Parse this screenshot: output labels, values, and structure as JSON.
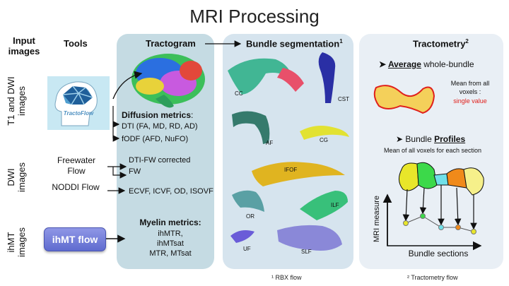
{
  "title": "MRI Processing",
  "headers": {
    "input_images": "Input images",
    "tools": "Tools",
    "tractogram": "Tractogram",
    "bundle_segmentation": "Bundle segmentation",
    "bundle_sup": "1",
    "tractometry": "Tractometry",
    "tractometry_sup": "2"
  },
  "rows": {
    "t1_dwi": "T1 and DWI images",
    "dwi": "DWI images",
    "ihmt": "ihMT images"
  },
  "tools": {
    "tractoflow_logo": "TractoFlow",
    "freewater": "Freewater Flow",
    "noddi": "NODDI Flow",
    "ihmt_button": "ihMT flow"
  },
  "tractogram": {
    "diffusion_title": "Diffusion metrics",
    "diffusion_colon": ":",
    "dti": "DTI (FA, MD, RD, AD)",
    "fodf": "fODF (AFD, NuFO)",
    "dtifw_1": "DTI-FW corrected",
    "dtifw_2": "FW",
    "noddi_metrics": "ECVF, ICVF, OD, ISOVF",
    "myelin_title": "Myelin metrics:",
    "myelin_1": "ihMTR,",
    "myelin_2": "ihMTsat",
    "myelin_3": "MTR, MTsat"
  },
  "bundles": [
    "CC",
    "CST",
    "AF",
    "CG",
    "IFOF",
    "ILF",
    "OR",
    "UF",
    "SLF"
  ],
  "tractometry": {
    "bullet": "➤",
    "average_word": "Average",
    "average_rest": "whole-bundle",
    "mean_all": "Mean from all voxels :",
    "single_value": "single value",
    "profiles_prefix": "Bundle",
    "profiles_word": "Profiles",
    "profiles_desc": "Mean of all voxels for each section",
    "ylabel": "MRI measure",
    "xlabel": "Bundle sections"
  },
  "footnotes": {
    "rbx": "¹ RBX flow",
    "tractometry_flow": "² Tractometry flow"
  },
  "colors": {
    "panel_tractogram": "#c5dbe3",
    "panel_bundle": "#d6e4ee",
    "panel_tractometry": "#e9eff5",
    "single_value": "#e0201c",
    "ihmt_button": "#6e78d6"
  }
}
